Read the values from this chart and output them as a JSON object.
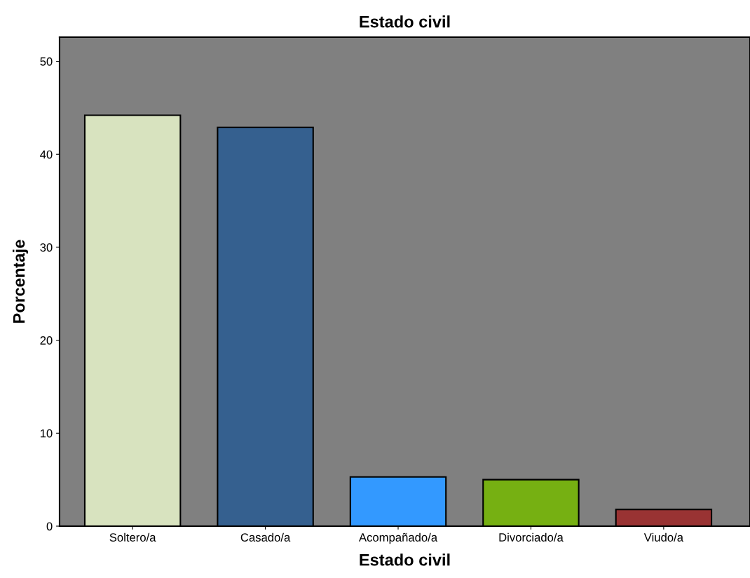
{
  "chart_data": {
    "type": "bar",
    "title": "Estado civil",
    "xlabel": "Estado civil",
    "ylabel": "Porcentaje",
    "categories": [
      "Soltero/a",
      "Casado/a",
      "Acompañado/a",
      "Divorciado/a",
      "Viudo/a"
    ],
    "values": [
      44.2,
      42.9,
      5.3,
      5.0,
      1.8
    ],
    "colors": [
      "#d8e3bf",
      "#35608f",
      "#3399ff",
      "#76b012",
      "#993333"
    ],
    "ylim": [
      0,
      52.6
    ],
    "yticks": [
      0,
      10,
      20,
      30,
      40,
      50
    ],
    "grid": false,
    "legend": false
  }
}
